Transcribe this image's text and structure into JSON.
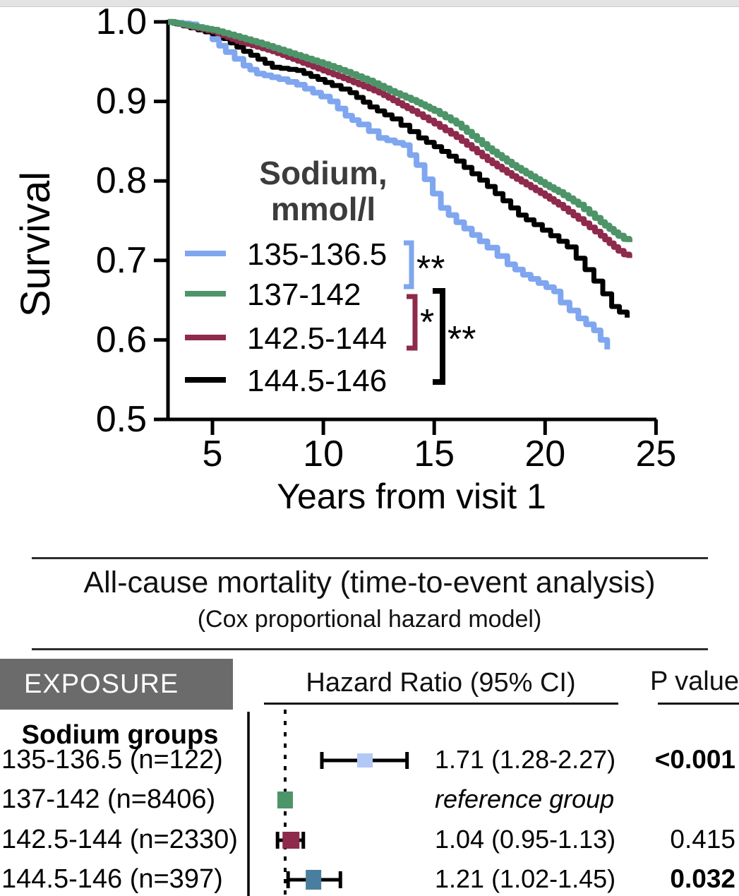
{
  "top_strip": {
    "base_color": "#e3e3e3",
    "light_segment_color": "#f7f7f7",
    "border_color": "#cfcfcf"
  },
  "colors": {
    "curve_blue": "#7FA6EF",
    "curve_green": "#4E9469",
    "curve_maroon": "#8E2A4C",
    "curve_black": "#000000",
    "marker_light_blue": "#B3C9F5",
    "marker_green": "#4E9469",
    "marker_maroon": "#8E2A4C",
    "marker_teal": "#4A7E9E",
    "exposure_header_bg": "#6B6B6B",
    "legend_title_color": "#3c3c3c"
  },
  "chart_data": [
    {
      "type": "line",
      "subtype": "kaplan-meier-survival",
      "ylabel": "Survival",
      "xlabel": "Years from visit 1",
      "xlim": [
        2.9,
        25
      ],
      "ylim": [
        0.5,
        1.0
      ],
      "x_ticks": [
        "5",
        "10",
        "15",
        "20",
        "25"
      ],
      "y_ticks": [
        "1.0",
        "0.9",
        "0.8",
        "0.7",
        "0.6",
        "0.5"
      ],
      "grid": false,
      "legend_position": "center-left inside plot",
      "legend_title_line1": "Sodium,",
      "legend_title_line2": "mmol/l",
      "series": [
        {
          "name": "135-136.5",
          "color": "#7FA6EF",
          "points": [
            [
              3.0,
              1.0
            ],
            [
              4.0,
              0.997
            ],
            [
              4.6,
              0.99
            ],
            [
              5.0,
              0.978
            ],
            [
              5.6,
              0.962
            ],
            [
              6.4,
              0.945
            ],
            [
              7.0,
              0.935
            ],
            [
              8.0,
              0.928
            ],
            [
              8.8,
              0.921
            ],
            [
              9.9,
              0.906
            ],
            [
              10.3,
              0.9
            ],
            [
              11.0,
              0.882
            ],
            [
              11.6,
              0.871
            ],
            [
              12.5,
              0.854
            ],
            [
              13.6,
              0.845
            ],
            [
              14.2,
              0.82
            ],
            [
              15.3,
              0.766
            ],
            [
              16.0,
              0.748
            ],
            [
              17.4,
              0.716
            ],
            [
              18.3,
              0.695
            ],
            [
              19.0,
              0.682
            ],
            [
              20.4,
              0.661
            ],
            [
              20.7,
              0.647
            ],
            [
              21.5,
              0.627
            ],
            [
              22.2,
              0.612
            ],
            [
              22.8,
              0.588
            ]
          ]
        },
        {
          "name": "137-142",
          "color": "#4E9469",
          "points": [
            [
              3.0,
              1.0
            ],
            [
              5.0,
              0.99
            ],
            [
              6.0,
              0.982
            ],
            [
              7.0,
              0.974
            ],
            [
              8.0,
              0.965
            ],
            [
              9.0,
              0.956
            ],
            [
              10.0,
              0.947
            ],
            [
              11.0,
              0.937
            ],
            [
              12.0,
              0.926
            ],
            [
              13.0,
              0.913
            ],
            [
              14.2,
              0.899
            ],
            [
              15.0,
              0.888
            ],
            [
              16.0,
              0.872
            ],
            [
              17.4,
              0.841
            ],
            [
              18.5,
              0.82
            ],
            [
              20.0,
              0.795
            ],
            [
              20.6,
              0.786
            ],
            [
              21.5,
              0.77
            ],
            [
              22.5,
              0.748
            ],
            [
              23.3,
              0.731
            ],
            [
              23.8,
              0.723
            ]
          ]
        },
        {
          "name": "142.5-144",
          "color": "#8E2A4C",
          "points": [
            [
              3.0,
              1.0
            ],
            [
              5.0,
              0.988
            ],
            [
              6.1,
              0.976
            ],
            [
              7.7,
              0.963
            ],
            [
              9.3,
              0.946
            ],
            [
              10.9,
              0.929
            ],
            [
              12.5,
              0.911
            ],
            [
              14.0,
              0.888
            ],
            [
              15.0,
              0.872
            ],
            [
              16.0,
              0.855
            ],
            [
              17.4,
              0.826
            ],
            [
              18.5,
              0.806
            ],
            [
              20.0,
              0.781
            ],
            [
              20.6,
              0.77
            ],
            [
              21.5,
              0.752
            ],
            [
              22.5,
              0.731
            ],
            [
              23.3,
              0.712
            ],
            [
              23.8,
              0.703
            ]
          ]
        },
        {
          "name": "144.5-146",
          "color": "#000000",
          "points": [
            [
              3.0,
              1.0
            ],
            [
              5.0,
              0.985
            ],
            [
              5.5,
              0.979
            ],
            [
              6.4,
              0.963
            ],
            [
              7.7,
              0.943
            ],
            [
              8.8,
              0.939
            ],
            [
              10.4,
              0.92
            ],
            [
              11.2,
              0.911
            ],
            [
              12.1,
              0.893
            ],
            [
              13.1,
              0.878
            ],
            [
              14.3,
              0.854
            ],
            [
              15.0,
              0.843
            ],
            [
              16.0,
              0.825
            ],
            [
              17.4,
              0.793
            ],
            [
              18.8,
              0.757
            ],
            [
              19.5,
              0.745
            ],
            [
              21.0,
              0.717
            ],
            [
              22.2,
              0.674
            ],
            [
              23.0,
              0.642
            ],
            [
              23.7,
              0.628
            ]
          ]
        }
      ],
      "significance": [
        {
          "label": "**",
          "color": "#7FA6EF",
          "groups": "135-136.5 vs 137-142"
        },
        {
          "label": "*",
          "color": "#8E2A4C",
          "groups": "137-142 vs 142.5-144"
        },
        {
          "label": "**",
          "color": "#000000",
          "groups": "137-142 vs 144.5-146"
        }
      ]
    },
    {
      "type": "forest",
      "x_scale": "log",
      "ref_value": 1.0,
      "rows": [
        {
          "group": "135-136.5",
          "n": 122,
          "label": "135-136.5 (n=122)",
          "hr": 1.71,
          "ci": [
            1.28,
            2.27
          ],
          "hr_text": "1.71 (1.28-2.27)",
          "p_text": "<0.001",
          "p_bold": true,
          "italic": false,
          "marker_color": "#B3C9F5",
          "show_ci": true
        },
        {
          "group": "137-142",
          "n": 8406,
          "label": "137-142 (n=8406)",
          "hr": 1.0,
          "ci": null,
          "hr_text": "reference group",
          "p_text": "",
          "p_bold": false,
          "italic": true,
          "marker_color": "#4E9469",
          "show_ci": false
        },
        {
          "group": "142.5-144",
          "n": 2330,
          "label": "142.5-144 (n=2330)",
          "hr": 1.04,
          "ci": [
            0.95,
            1.13
          ],
          "hr_text": "1.04 (0.95-1.13)",
          "p_text": "0.415",
          "p_bold": false,
          "italic": false,
          "marker_color": "#8E2A4C",
          "show_ci": true
        },
        {
          "group": "144.5-146",
          "n": 397,
          "label": "144.5-146 (n=397)",
          "hr": 1.21,
          "ci": [
            1.02,
            1.45
          ],
          "hr_text": "1.21 (1.02-1.45)",
          "p_text": "0.032",
          "p_bold": true,
          "italic": false,
          "marker_color": "#4A7E9E",
          "show_ci": true
        }
      ]
    }
  ],
  "section": {
    "title": "All-cause mortality (time-to-event analysis)",
    "subtitle": "(Cox proportional hazard model)"
  },
  "table": {
    "exposure_header": "EXPOSURE",
    "hr_header": "Hazard Ratio (95% CI)",
    "p_header": "P value",
    "group_label": "Sodium groups"
  }
}
